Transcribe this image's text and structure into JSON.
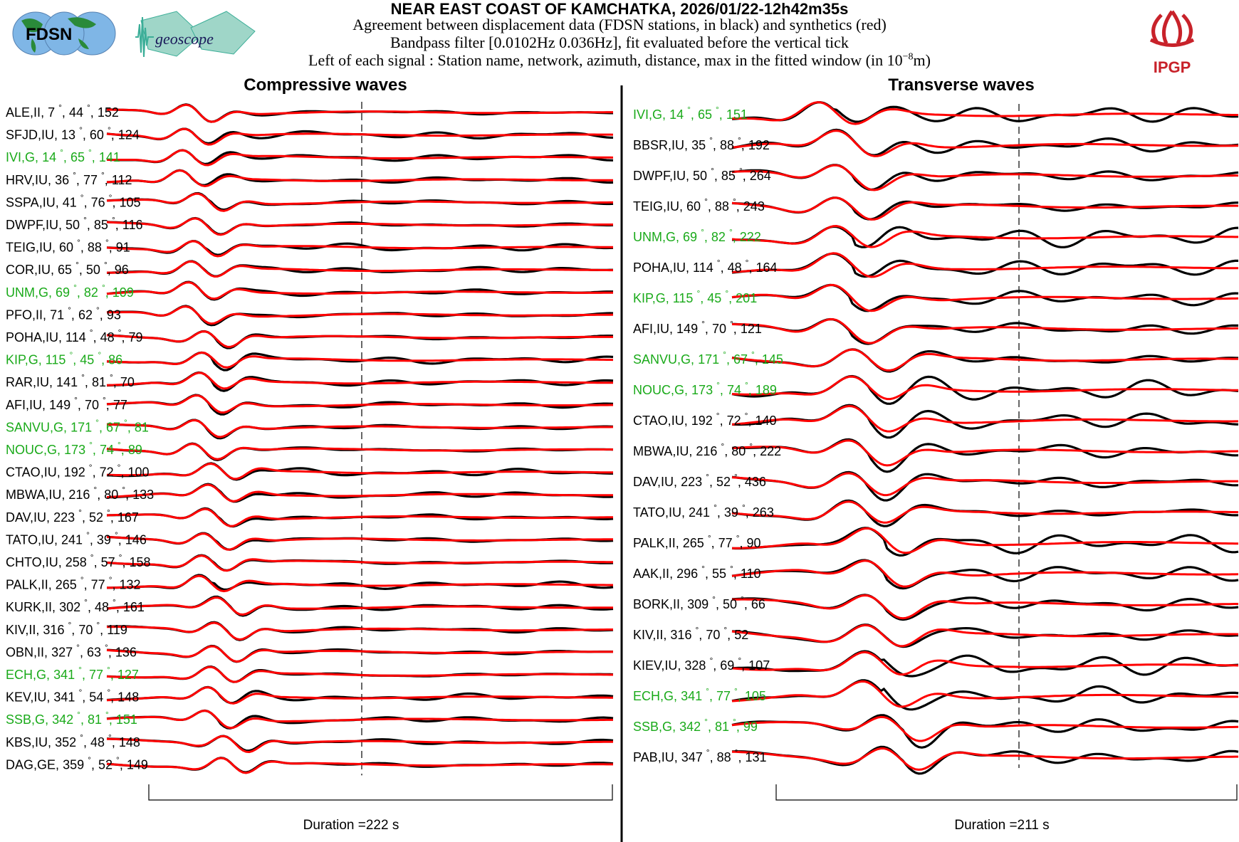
{
  "header": {
    "title": "NEAR EAST COAST OF KAMCHATKA, 2026/01/22-12h42m35s",
    "line1": "Agreement between displacement data (FDSN stations, in black) and synthetics (red)",
    "line2": "Bandpass filter [0.0102Hz 0.036Hz], fit evaluated before the vertical tick",
    "line3_pre": "Left of each signal : Station name, network, azimuth, distance, max in the fitted window (in 10",
    "line3_exp": "−8",
    "line3_post": "m)"
  },
  "logos": {
    "fdsn": "FDSN",
    "geoscope": "geoscope",
    "ipgp": "IPGP"
  },
  "colors": {
    "data": "#000000",
    "synthetic": "#ff0000",
    "geoscope_station": "#1aaa1a"
  },
  "chart_data": [
    {
      "type": "line",
      "title": "Compressive waves",
      "duration_label": "Duration =222 s",
      "duration_s": 222,
      "fit_tick_fraction": 0.5,
      "series_legend": {
        "data": "black",
        "synthetics": "red"
      },
      "stations": [
        {
          "name": "ALE",
          "net": "II",
          "az": 7,
          "dist": 44,
          "max": 152,
          "geoscope": false
        },
        {
          "name": "SFJD",
          "net": "IU",
          "az": 13,
          "dist": 60,
          "max": 124,
          "geoscope": false
        },
        {
          "name": "IVI",
          "net": "G",
          "az": 14,
          "dist": 65,
          "max": 141,
          "geoscope": true
        },
        {
          "name": "HRV",
          "net": "IU",
          "az": 36,
          "dist": 77,
          "max": 112,
          "geoscope": false
        },
        {
          "name": "SSPA",
          "net": "IU",
          "az": 41,
          "dist": 76,
          "max": 105,
          "geoscope": false
        },
        {
          "name": "DWPF",
          "net": "IU",
          "az": 50,
          "dist": 85,
          "max": 116,
          "geoscope": false
        },
        {
          "name": "TEIG",
          "net": "IU",
          "az": 60,
          "dist": 88,
          "max": 91,
          "geoscope": false
        },
        {
          "name": "COR",
          "net": "IU",
          "az": 65,
          "dist": 50,
          "max": 96,
          "geoscope": false
        },
        {
          "name": "UNM",
          "net": "G",
          "az": 69,
          "dist": 82,
          "max": 109,
          "geoscope": true
        },
        {
          "name": "PFO",
          "net": "II",
          "az": 71,
          "dist": 62,
          "max": 93,
          "geoscope": false
        },
        {
          "name": "POHA",
          "net": "IU",
          "az": 114,
          "dist": 48,
          "max": 79,
          "geoscope": false
        },
        {
          "name": "KIP",
          "net": "G",
          "az": 115,
          "dist": 45,
          "max": 86,
          "geoscope": true
        },
        {
          "name": "RAR",
          "net": "IU",
          "az": 141,
          "dist": 81,
          "max": 70,
          "geoscope": false
        },
        {
          "name": "AFI",
          "net": "IU",
          "az": 149,
          "dist": 70,
          "max": 77,
          "geoscope": false
        },
        {
          "name": "SANVU",
          "net": "G",
          "az": 171,
          "dist": 67,
          "max": 81,
          "geoscope": true
        },
        {
          "name": "NOUC",
          "net": "G",
          "az": 173,
          "dist": 74,
          "max": 89,
          "geoscope": true
        },
        {
          "name": "CTAO",
          "net": "IU",
          "az": 192,
          "dist": 72,
          "max": 100,
          "geoscope": false
        },
        {
          "name": "MBWA",
          "net": "IU",
          "az": 216,
          "dist": 80,
          "max": 133,
          "geoscope": false
        },
        {
          "name": "DAV",
          "net": "IU",
          "az": 223,
          "dist": 52,
          "max": 167,
          "geoscope": false
        },
        {
          "name": "TATO",
          "net": "IU",
          "az": 241,
          "dist": 39,
          "max": 146,
          "geoscope": false
        },
        {
          "name": "CHTO",
          "net": "IU",
          "az": 258,
          "dist": 57,
          "max": 158,
          "geoscope": false
        },
        {
          "name": "PALK",
          "net": "II",
          "az": 265,
          "dist": 77,
          "max": 132,
          "geoscope": false
        },
        {
          "name": "KURK",
          "net": "II",
          "az": 302,
          "dist": 48,
          "max": 161,
          "geoscope": false
        },
        {
          "name": "KIV",
          "net": "II",
          "az": 316,
          "dist": 70,
          "max": 119,
          "geoscope": false
        },
        {
          "name": "OBN",
          "net": "II",
          "az": 327,
          "dist": 63,
          "max": 136,
          "geoscope": false
        },
        {
          "name": "ECH",
          "net": "G",
          "az": 341,
          "dist": 77,
          "max": 127,
          "geoscope": true
        },
        {
          "name": "KEV",
          "net": "IU",
          "az": 341,
          "dist": 54,
          "max": 148,
          "geoscope": false
        },
        {
          "name": "SSB",
          "net": "G",
          "az": 342,
          "dist": 81,
          "max": 151,
          "geoscope": true
        },
        {
          "name": "KBS",
          "net": "IU",
          "az": 352,
          "dist": 48,
          "max": 148,
          "geoscope": false
        },
        {
          "name": "DAG",
          "net": "GE",
          "az": 359,
          "dist": 52,
          "max": 149,
          "geoscope": false
        }
      ]
    },
    {
      "type": "line",
      "title": "Transverse waves",
      "duration_label": "Duration =211 s",
      "duration_s": 211,
      "fit_tick_fraction": 0.57,
      "series_legend": {
        "data": "black",
        "synthetics": "red"
      },
      "stations": [
        {
          "name": "IVI",
          "net": "G",
          "az": 14,
          "dist": 65,
          "max": 151,
          "geoscope": true
        },
        {
          "name": "BBSR",
          "net": "IU",
          "az": 35,
          "dist": 88,
          "max": 192,
          "geoscope": false
        },
        {
          "name": "DWPF",
          "net": "IU",
          "az": 50,
          "dist": 85,
          "max": 264,
          "geoscope": false
        },
        {
          "name": "TEIG",
          "net": "IU",
          "az": 60,
          "dist": 88,
          "max": 243,
          "geoscope": false
        },
        {
          "name": "UNM",
          "net": "G",
          "az": 69,
          "dist": 82,
          "max": 222,
          "geoscope": true
        },
        {
          "name": "POHA",
          "net": "IU",
          "az": 114,
          "dist": 48,
          "max": 164,
          "geoscope": false
        },
        {
          "name": "KIP",
          "net": "G",
          "az": 115,
          "dist": 45,
          "max": 201,
          "geoscope": true
        },
        {
          "name": "AFI",
          "net": "IU",
          "az": 149,
          "dist": 70,
          "max": 121,
          "geoscope": false
        },
        {
          "name": "SANVU",
          "net": "G",
          "az": 171,
          "dist": 67,
          "max": 145,
          "geoscope": true
        },
        {
          "name": "NOUC",
          "net": "G",
          "az": 173,
          "dist": 74,
          "max": 189,
          "geoscope": true
        },
        {
          "name": "CTAO",
          "net": "IU",
          "az": 192,
          "dist": 72,
          "max": 140,
          "geoscope": false
        },
        {
          "name": "MBWA",
          "net": "IU",
          "az": 216,
          "dist": 80,
          "max": 222,
          "geoscope": false
        },
        {
          "name": "DAV",
          "net": "IU",
          "az": 223,
          "dist": 52,
          "max": 436,
          "geoscope": false
        },
        {
          "name": "TATO",
          "net": "IU",
          "az": 241,
          "dist": 39,
          "max": 263,
          "geoscope": false
        },
        {
          "name": "PALK",
          "net": "II",
          "az": 265,
          "dist": 77,
          "max": 90,
          "geoscope": false
        },
        {
          "name": "AAK",
          "net": "II",
          "az": 296,
          "dist": 55,
          "max": 110,
          "geoscope": false
        },
        {
          "name": "BORK",
          "net": "II",
          "az": 309,
          "dist": 50,
          "max": 66,
          "geoscope": false
        },
        {
          "name": "KIV",
          "net": "II",
          "az": 316,
          "dist": 70,
          "max": 52,
          "geoscope": false
        },
        {
          "name": "KIEV",
          "net": "IU",
          "az": 328,
          "dist": 69,
          "max": 107,
          "geoscope": false
        },
        {
          "name": "ECH",
          "net": "G",
          "az": 341,
          "dist": 77,
          "max": 105,
          "geoscope": true
        },
        {
          "name": "SSB",
          "net": "G",
          "az": 342,
          "dist": 81,
          "max": 99,
          "geoscope": true
        },
        {
          "name": "PAB",
          "net": "IU",
          "az": 347,
          "dist": 88,
          "max": 131,
          "geoscope": false
        }
      ]
    }
  ]
}
